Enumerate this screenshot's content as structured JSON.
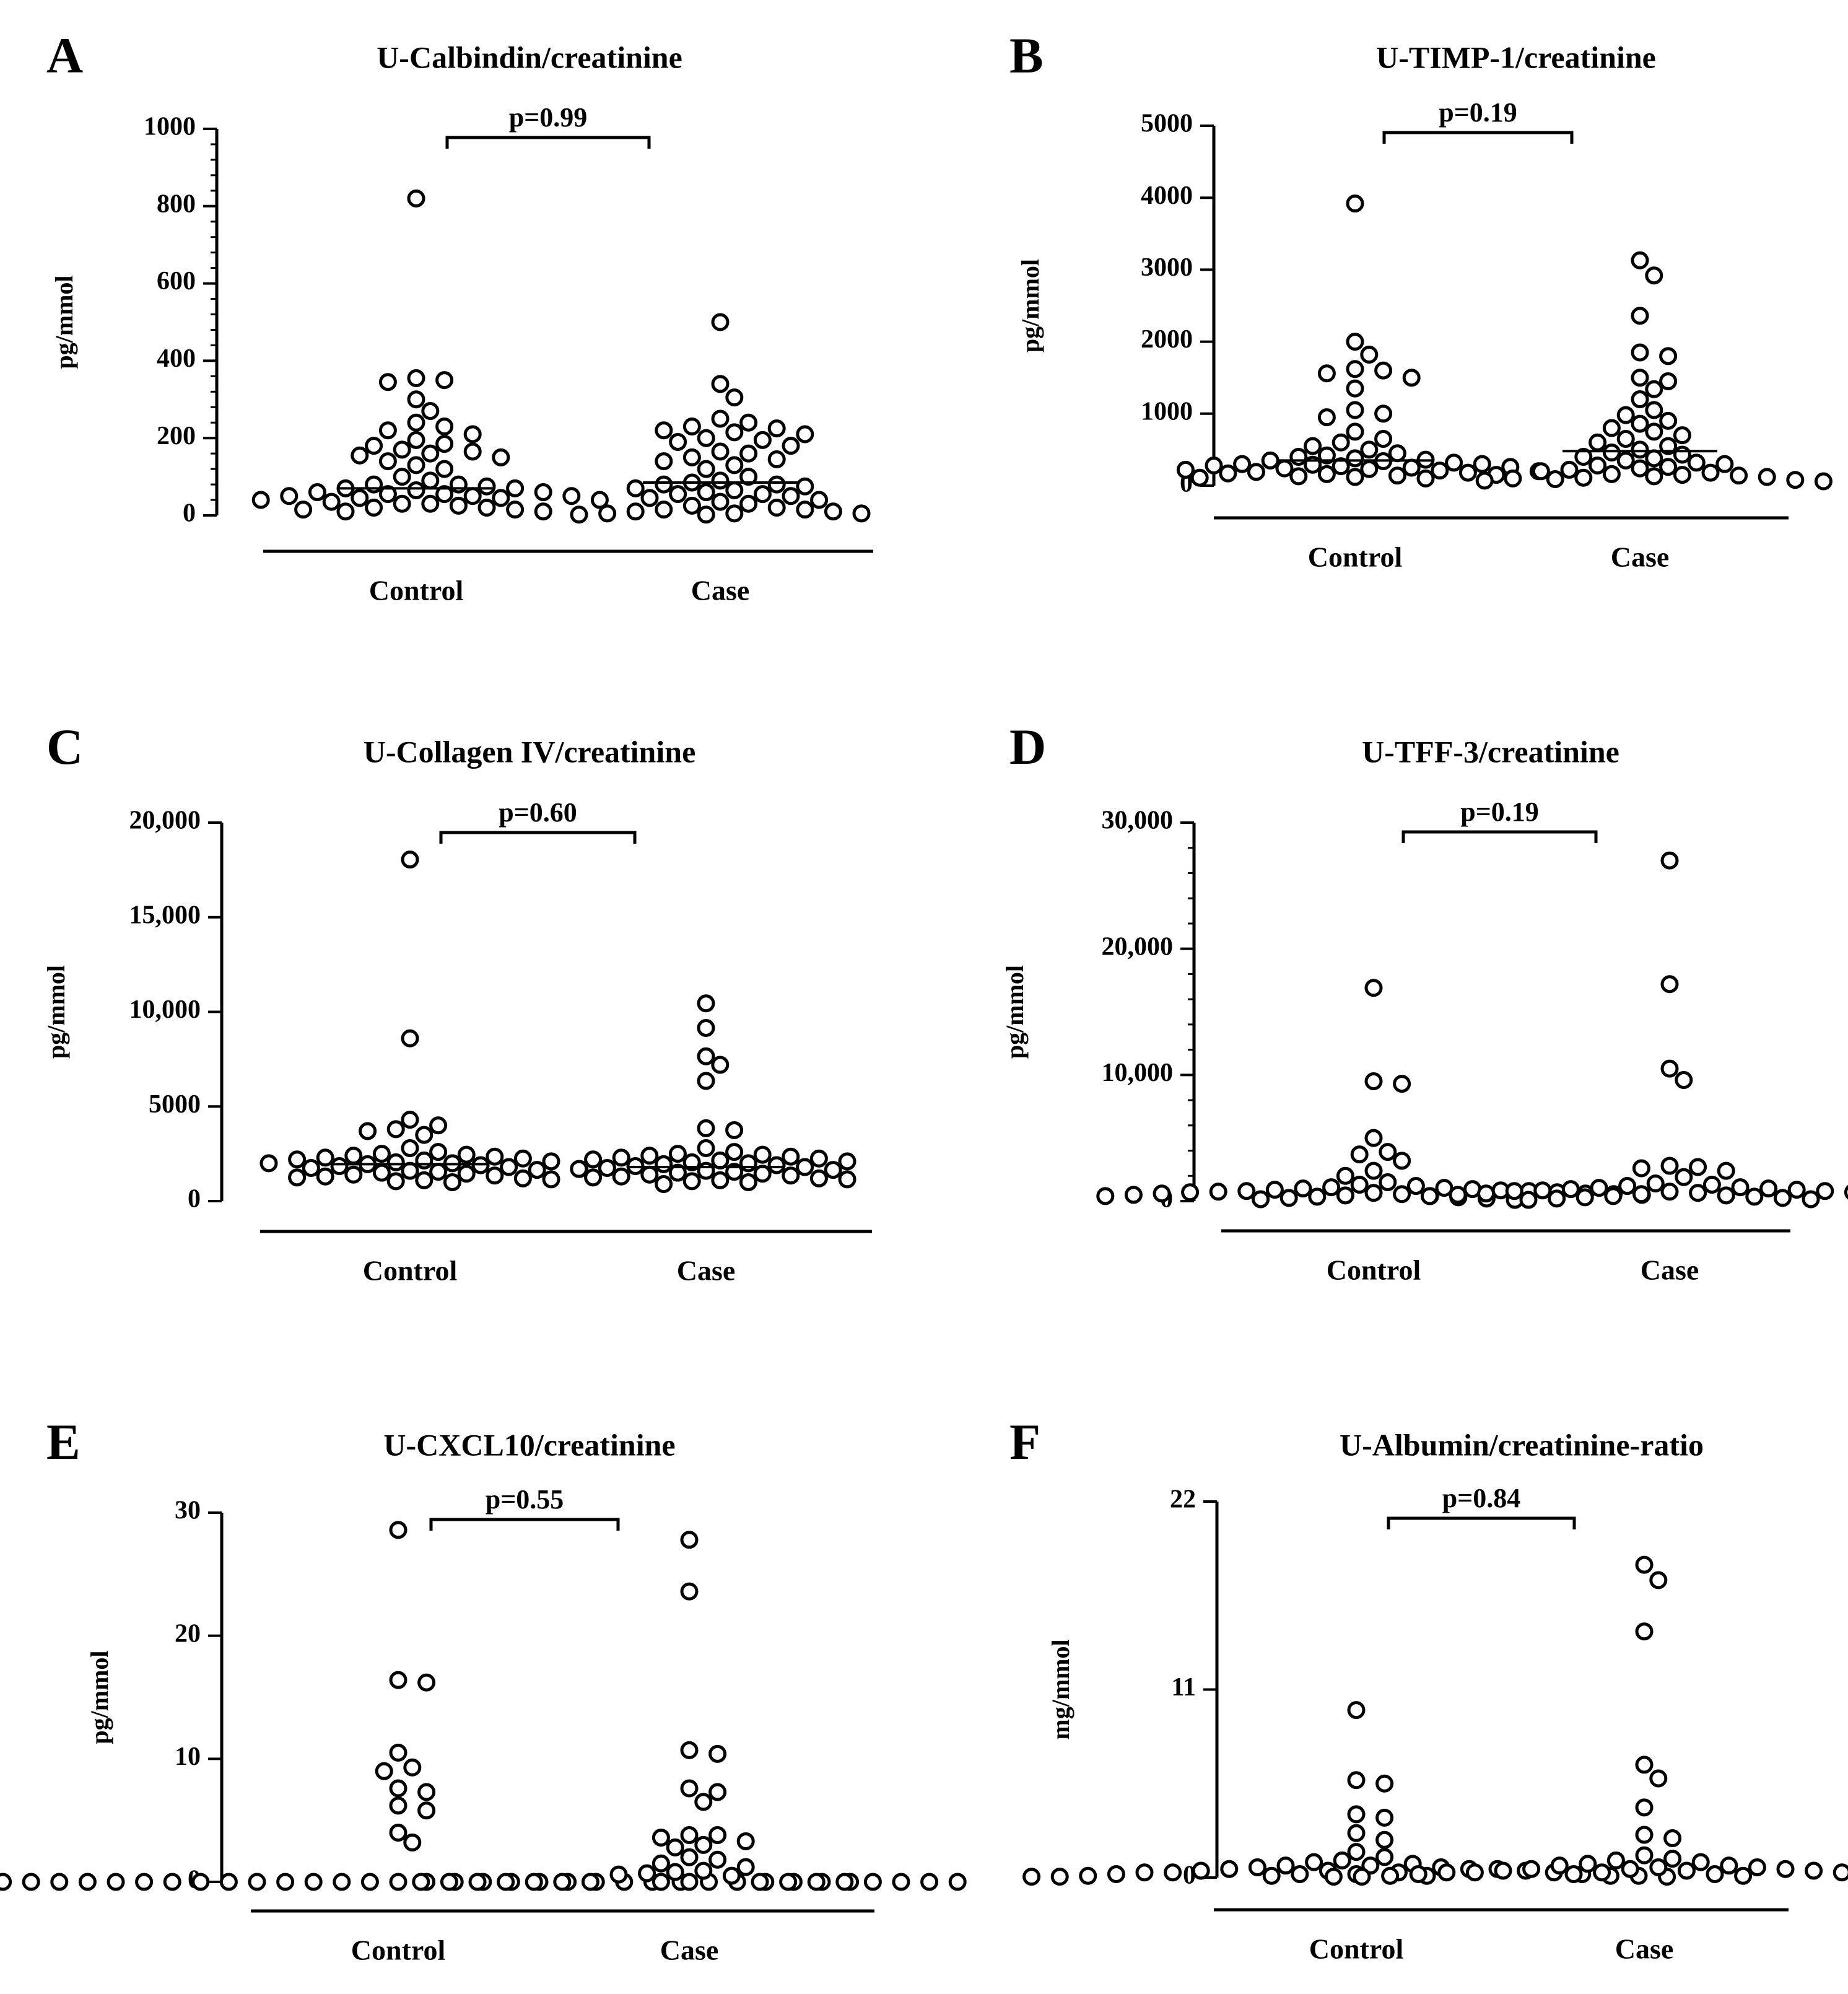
{
  "colors": {
    "ink": "#000000",
    "background": "#ffffff"
  },
  "chart_data": [
    {
      "panel": "A",
      "type": "scatter",
      "title": "U-Calbindin/creatinine",
      "ylabel": "pg/mmol",
      "ylim": [
        0,
        1000
      ],
      "yticks": [
        0,
        200,
        400,
        600,
        800,
        1000
      ],
      "ytick_labels": [
        "0",
        "200",
        "400",
        "600",
        "800",
        "1000"
      ],
      "minor_ticks": true,
      "categories": [
        "Control",
        "Case"
      ],
      "pvalue": "p=0.99",
      "medians": [
        70,
        85
      ],
      "series": [
        {
          "name": "Control",
          "values": [
            820,
            355,
            350,
            345,
            300,
            270,
            240,
            230,
            220,
            210,
            195,
            185,
            180,
            170,
            165,
            160,
            155,
            150,
            140,
            130,
            120,
            100,
            90,
            80,
            80,
            75,
            70,
            70,
            65,
            60,
            60,
            55,
            55,
            50,
            50,
            50,
            45,
            45,
            40,
            40,
            35,
            30,
            30,
            25,
            20,
            20,
            15,
            15,
            10,
            10
          ]
        },
        {
          "name": "Case",
          "values": [
            500,
            340,
            305,
            250,
            240,
            230,
            225,
            220,
            215,
            210,
            200,
            195,
            190,
            180,
            165,
            160,
            150,
            145,
            140,
            130,
            120,
            100,
            90,
            85,
            80,
            80,
            75,
            70,
            65,
            60,
            55,
            55,
            50,
            45,
            40,
            35,
            30,
            25,
            20,
            15,
            15,
            10,
            10,
            5,
            5,
            5,
            2,
            2
          ]
        }
      ]
    },
    {
      "panel": "B",
      "type": "scatter",
      "title": "U-TIMP-1/creatinine",
      "ylabel": "pg/mmol",
      "ylim": [
        0,
        5000
      ],
      "yticks": [
        0,
        1000,
        2000,
        3000,
        4000,
        5000
      ],
      "ytick_labels": [
        "0",
        "1000",
        "2000",
        "3000",
        "4000",
        "5000"
      ],
      "minor_ticks": false,
      "categories": [
        "Control",
        "Case"
      ],
      "pvalue": "p=0.19",
      "medians": [
        350,
        480
      ],
      "series": [
        {
          "name": "Control",
          "values": [
            3920,
            2000,
            1820,
            1620,
            1600,
            1560,
            1500,
            1350,
            1050,
            1000,
            950,
            750,
            650,
            600,
            550,
            500,
            450,
            420,
            400,
            380,
            360,
            350,
            340,
            320,
            300,
            300,
            290,
            280,
            270,
            260,
            250,
            240,
            230,
            220,
            210,
            200,
            190,
            180,
            170,
            160,
            150,
            140,
            130,
            120,
            110,
            100
          ]
        },
        {
          "name": "Case",
          "values": [
            3130,
            2920,
            2360,
            1850,
            1800,
            1500,
            1450,
            1340,
            1200,
            1050,
            980,
            900,
            860,
            800,
            750,
            700,
            650,
            600,
            550,
            500,
            460,
            430,
            400,
            380,
            350,
            320,
            300,
            280,
            260,
            240,
            220,
            200,
            180,
            160,
            150,
            140,
            130,
            120,
            110,
            100,
            90,
            80,
            70,
            60
          ]
        }
      ]
    },
    {
      "panel": "C",
      "type": "scatter",
      "title": "U-Collagen IV/creatinine",
      "ylabel": "pg/mmol",
      "ylim": [
        0,
        20000
      ],
      "yticks": [
        0,
        5000,
        10000,
        15000,
        20000
      ],
      "ytick_labels": [
        "0",
        "5000",
        "10,000",
        "15,000",
        "20,000"
      ],
      "minor_ticks": false,
      "categories": [
        "Control",
        "Case"
      ],
      "pvalue": "p=0.60",
      "medians": [
        1950,
        1800
      ],
      "series": [
        {
          "name": "Control",
          "values": [
            18050,
            8600,
            4300,
            4000,
            3800,
            3700,
            3500,
            2800,
            2600,
            2500,
            2450,
            2400,
            2350,
            2300,
            2250,
            2200,
            2150,
            2100,
            2050,
            2000,
            2000,
            1950,
            1900,
            1850,
            1800,
            1750,
            1700,
            1650,
            1600,
            1550,
            1500,
            1450,
            1400,
            1350,
            1300,
            1250,
            1200,
            1150,
            1100,
            1050,
            1000
          ]
        },
        {
          "name": "Case",
          "values": [
            10450,
            9150,
            7650,
            7200,
            6350,
            3850,
            3750,
            2800,
            2600,
            2500,
            2450,
            2400,
            2350,
            2300,
            2250,
            2200,
            2150,
            2100,
            2050,
            2000,
            1950,
            1900,
            1850,
            1800,
            1750,
            1700,
            1650,
            1600,
            1550,
            1500,
            1450,
            1400,
            1350,
            1300,
            1250,
            1200,
            1150,
            1100,
            1050,
            1000,
            900
          ]
        }
      ]
    },
    {
      "panel": "D",
      "type": "scatter",
      "title": "U-TFF-3/creatinine",
      "ylabel": "pg/mmol",
      "ylim": [
        0,
        30000
      ],
      "yticks": [
        0,
        10000,
        20000,
        30000
      ],
      "ytick_labels": [
        "0",
        "10,000",
        "20,000",
        "30,000"
      ],
      "minor_ticks": true,
      "categories": [
        "Control",
        "Case"
      ],
      "pvalue": "p=0.19",
      "medians": null,
      "series": [
        {
          "name": "Control",
          "values": [
            16900,
            9500,
            9300,
            5000,
            3900,
            3700,
            3200,
            2400,
            2000,
            1500,
            1300,
            1200,
            1100,
            1050,
            1000,
            950,
            900,
            850,
            800,
            800,
            750,
            700,
            700,
            650,
            600,
            600,
            550,
            550,
            500,
            500,
            450,
            400,
            400,
            350,
            300,
            250,
            200,
            150,
            100
          ]
        },
        {
          "name": "Case",
          "values": [
            27000,
            17200,
            10500,
            9600,
            2800,
            2700,
            2600,
            2400,
            1900,
            1400,
            1300,
            1200,
            1100,
            1050,
            1000,
            950,
            900,
            850,
            800,
            800,
            750,
            700,
            650,
            600,
            600,
            550,
            500,
            500,
            450,
            400,
            400,
            350,
            300,
            250,
            200,
            150,
            100
          ]
        }
      ]
    },
    {
      "panel": "E",
      "type": "scatter",
      "title": "U-CXCL10/creatinine",
      "ylabel": "pg/mmol",
      "ylim": [
        0,
        30
      ],
      "yticks": [
        0,
        10,
        20,
        30
      ],
      "ytick_labels": [
        "0",
        "10",
        "20",
        "30"
      ],
      "minor_ticks": false,
      "categories": [
        "Control",
        "Case"
      ],
      "pvalue": "p=0.55",
      "medians": null,
      "series": [
        {
          "name": "Control",
          "values": [
            28.6,
            16.4,
            16.2,
            10.5,
            9.3,
            9.0,
            7.6,
            7.3,
            6.2,
            5.8,
            4.0,
            3.2,
            0,
            0,
            0,
            0,
            0,
            0,
            0,
            0,
            0,
            0,
            0,
            0,
            0,
            0,
            0,
            0,
            0,
            0,
            0,
            0,
            0,
            0,
            0,
            0,
            0,
            0,
            0,
            0,
            0,
            0,
            0,
            0,
            0
          ]
        },
        {
          "name": "Case",
          "values": [
            27.8,
            23.6,
            10.7,
            10.4,
            7.6,
            7.3,
            6.5,
            3.8,
            3.8,
            3.6,
            3.3,
            3.0,
            2.8,
            2.0,
            1.8,
            1.5,
            1.2,
            0.9,
            0.8,
            0.7,
            0.6,
            0.5,
            0,
            0,
            0,
            0,
            0,
            0,
            0,
            0,
            0,
            0,
            0,
            0,
            0,
            0,
            0,
            0,
            0
          ]
        }
      ]
    },
    {
      "panel": "F",
      "type": "scatter",
      "title": "U-Albumin/creatinine-ratio",
      "ylabel": "mg/mmol",
      "ylim": [
        0,
        22
      ],
      "yticks": [
        0,
        11,
        22
      ],
      "ytick_labels": [
        "0",
        "11",
        "22"
      ],
      "minor_ticks": false,
      "categories": [
        "Control",
        "Case"
      ],
      "pvalue": "p=0.84",
      "medians": null,
      "series": [
        {
          "name": "Control",
          "values": [
            9.8,
            5.7,
            5.5,
            3.7,
            3.5,
            2.6,
            2.2,
            1.5,
            1.2,
            1.0,
            0.9,
            0.8,
            0.7,
            0.7,
            0.6,
            0.6,
            0.5,
            0.5,
            0.5,
            0.4,
            0.4,
            0.4,
            0.3,
            0.3,
            0.3,
            0.3,
            0.2,
            0.2,
            0.2,
            0.2,
            0.1,
            0.1,
            0.1,
            0.1,
            0.1,
            0.05,
            0.05,
            0.05
          ]
        },
        {
          "name": "Case",
          "values": [
            18.3,
            17.4,
            14.4,
            6.6,
            5.8,
            4.1,
            2.5,
            2.3,
            1.3,
            1.1,
            1.0,
            0.9,
            0.8,
            0.7,
            0.7,
            0.6,
            0.6,
            0.5,
            0.5,
            0.5,
            0.4,
            0.4,
            0.4,
            0.3,
            0.3,
            0.3,
            0.3,
            0.2,
            0.2,
            0.2,
            0.2,
            0.1,
            0.1,
            0.1,
            0.1,
            0.05,
            0.05,
            0.05
          ]
        }
      ]
    }
  ]
}
